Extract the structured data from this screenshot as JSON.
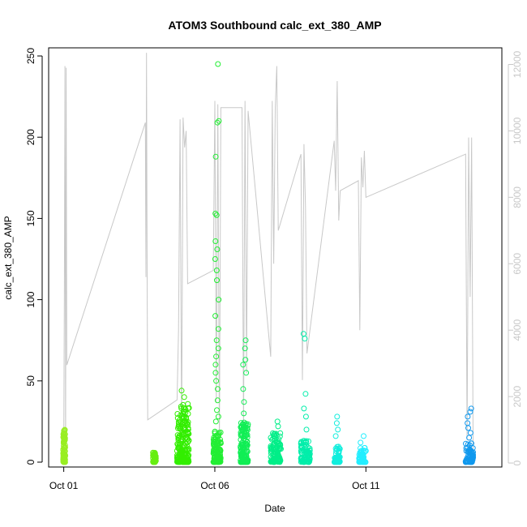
{
  "chart_data": {
    "type": "scatter",
    "title": "ATOM3 Southbound calc_ext_380_AMP",
    "xlabel": "Date",
    "ylabel": "calc_ext_380_AMP",
    "x_ticks": [
      "Oct 01",
      "Oct 06",
      "Oct 11"
    ],
    "x_tick_days": [
      1,
      6,
      11
    ],
    "xlim": [
      0.5,
      15.5
    ],
    "y_ticks": [
      0,
      50,
      100,
      150,
      200,
      250
    ],
    "ylim": [
      -3,
      255
    ],
    "y2_ticks": [
      0,
      2000,
      4000,
      6000,
      8000,
      10000,
      12000
    ],
    "y2lim": [
      -120,
      12500
    ],
    "grid": false,
    "legend": "none",
    "colors": {
      "secondary_line": "#c8c8c8",
      "axis": "#000000",
      "right_axis": "#c8c8c8"
    },
    "scatter_clusters": [
      {
        "day_start": 0.98,
        "day_end": 1.05,
        "color": "#99ee22",
        "max": 20,
        "outliers": []
      },
      {
        "day_start": 3.95,
        "day_end": 4.05,
        "color": "#66ee11",
        "max": 6,
        "outliers": []
      },
      {
        "day_start": 4.75,
        "day_end": 5.15,
        "color": "#33ee00",
        "max": 36,
        "outliers": [
          40,
          44
        ]
      },
      {
        "day_start": 5.95,
        "day_end": 6.2,
        "color": "#22ee33",
        "max": 20,
        "outliers": [
          25,
          28,
          32,
          38,
          45,
          50,
          55,
          60,
          65,
          70,
          75,
          82,
          90,
          100,
          112,
          118,
          125,
          131,
          136,
          152,
          153,
          188,
          209,
          210,
          245
        ]
      },
      {
        "day_start": 6.85,
        "day_end": 7.1,
        "color": "#11ee55",
        "max": 25,
        "outliers": [
          30,
          37,
          45,
          55,
          60,
          63,
          70,
          75
        ]
      },
      {
        "day_start": 7.85,
        "day_end": 8.2,
        "color": "#00ee88",
        "max": 18,
        "outliers": [
          22,
          25
        ]
      },
      {
        "day_start": 8.85,
        "day_end": 9.15,
        "color": "#00eeaa",
        "max": 14,
        "outliers": [
          20,
          28,
          33,
          42,
          76,
          79
        ]
      },
      {
        "day_start": 9.95,
        "day_end": 10.15,
        "color": "#11eedd",
        "max": 10,
        "outliers": [
          16,
          20,
          24,
          28
        ]
      },
      {
        "day_start": 10.75,
        "day_end": 11.0,
        "color": "#22eeff",
        "max": 9,
        "outliers": [
          12,
          16
        ]
      },
      {
        "day_start": 14.3,
        "day_end": 14.55,
        "color": "#1199ee",
        "max": 12,
        "outliers": [
          15,
          18,
          21,
          24,
          28,
          31,
          33
        ]
      }
    ],
    "secondary_series": {
      "name": "",
      "axis": "right",
      "style": "line",
      "points": [
        [
          1.0,
          200
        ],
        [
          1.02,
          5300
        ],
        [
          1.04,
          11950
        ],
        [
          1.06,
          100
        ],
        [
          1.08,
          11900
        ],
        [
          1.1,
          2950
        ],
        [
          3.7,
          10250
        ],
        [
          3.72,
          5600
        ],
        [
          3.74,
          12350
        ],
        [
          3.76,
          5550
        ],
        [
          3.78,
          1300
        ],
        [
          4.75,
          1900
        ],
        [
          4.8,
          4000
        ],
        [
          4.85,
          10350
        ],
        [
          4.9,
          800
        ],
        [
          4.95,
          10400
        ],
        [
          5.0,
          9500
        ],
        [
          5.05,
          10000
        ],
        [
          5.1,
          5400
        ],
        [
          5.95,
          5800
        ],
        [
          6.0,
          10900
        ],
        [
          6.05,
          1800
        ],
        [
          6.1,
          10800
        ],
        [
          6.15,
          500
        ],
        [
          6.2,
          10700
        ],
        [
          6.9,
          10700
        ],
        [
          6.95,
          1000
        ],
        [
          7.0,
          10900
        ],
        [
          7.05,
          2700
        ],
        [
          7.1,
          10600
        ],
        [
          7.85,
          3200
        ],
        [
          7.9,
          10900
        ],
        [
          7.95,
          6000
        ],
        [
          8.0,
          10700
        ],
        [
          8.05,
          11950
        ],
        [
          8.1,
          7000
        ],
        [
          8.85,
          9300
        ],
        [
          8.9,
          2500
        ],
        [
          8.95,
          9600
        ],
        [
          9.0,
          7700
        ],
        [
          9.05,
          3300
        ],
        [
          9.95,
          9700
        ],
        [
          10.0,
          8200
        ],
        [
          10.05,
          11500
        ],
        [
          10.1,
          7300
        ],
        [
          10.15,
          8200
        ],
        [
          10.75,
          8500
        ],
        [
          10.8,
          4000
        ],
        [
          10.85,
          9200
        ],
        [
          10.9,
          8300
        ],
        [
          10.95,
          9400
        ],
        [
          11.0,
          8000
        ],
        [
          14.3,
          9300
        ],
        [
          14.35,
          700
        ],
        [
          14.4,
          9800
        ],
        [
          14.45,
          5000
        ],
        [
          14.5,
          9800
        ],
        [
          14.55,
          100
        ]
      ]
    }
  }
}
